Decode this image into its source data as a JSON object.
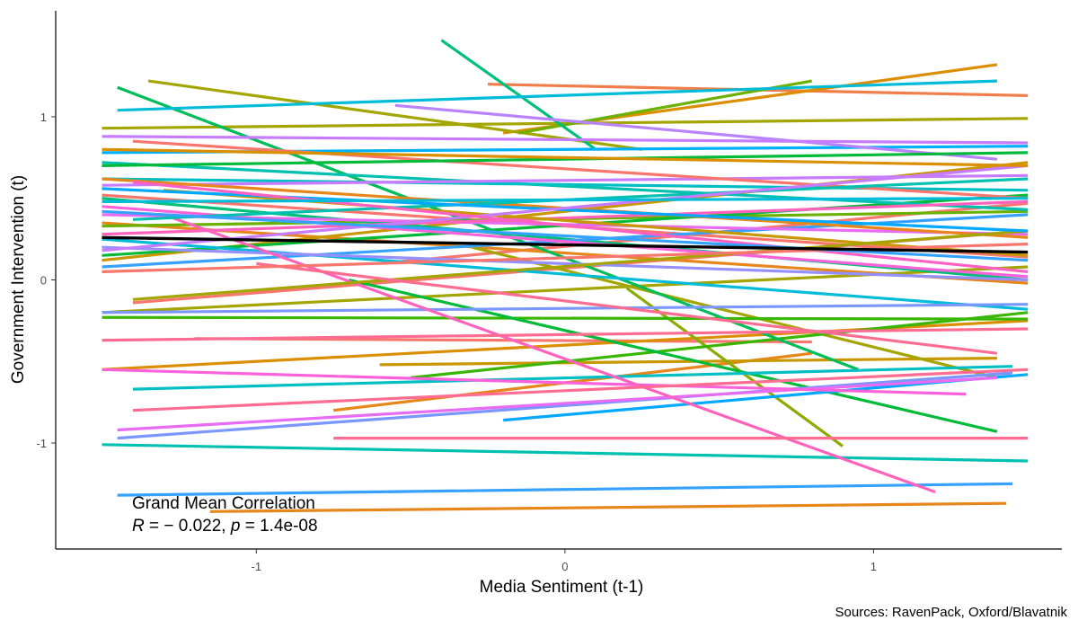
{
  "chart_data": {
    "type": "line",
    "title": "",
    "xlabel": "Media Sentiment (t-1)",
    "ylabel": "Government Intervention (t)",
    "xlim": [
      -1.65,
      1.61
    ],
    "ylim": [
      -1.65,
      1.65
    ],
    "x_ticks": [
      -1,
      0,
      1
    ],
    "x_tick_labels": [
      "-1",
      "0",
      "1"
    ],
    "y_ticks": [
      -1,
      0,
      1
    ],
    "y_tick_labels": [
      "-1",
      "0",
      "1"
    ],
    "grid": false,
    "legend": "none",
    "caption": "Sources: RavenPack, Oxford/Blavatnik",
    "annotation": {
      "line1": "Grand Mean Correlation",
      "r_label": "R",
      "r_value": " = − 0.022, ",
      "p_label": "p",
      "p_value": " = 1.4e-08"
    },
    "grand_mean": {
      "color": "#000000",
      "x": [
        -1.5,
        1.5
      ],
      "y": [
        0.26,
        0.17
      ]
    },
    "series": [
      {
        "color": "#F8766D",
        "x": [
          -1.5,
          1.5
        ],
        "y": [
          0.52,
          0.14
        ]
      },
      {
        "color": "#F8766D",
        "x": [
          -1.4,
          1.5
        ],
        "y": [
          -0.14,
          0.3
        ]
      },
      {
        "color": "#F8766D",
        "x": [
          -0.6,
          1.5
        ],
        "y": [
          0.1,
          0.47
        ]
      },
      {
        "color": "#F8766D",
        "x": [
          -1.2,
          0.8
        ],
        "y": [
          -0.36,
          -0.38
        ]
      },
      {
        "color": "#F07E4A",
        "x": [
          -0.25,
          1.5
        ],
        "y": [
          1.2,
          1.13
        ]
      },
      {
        "color": "#E7861B",
        "x": [
          -1.15,
          1.43
        ],
        "y": [
          -1.42,
          -1.37
        ]
      },
      {
        "color": "#E7861B",
        "x": [
          -0.75,
          0.8
        ],
        "y": [
          -0.8,
          -0.45
        ]
      },
      {
        "color": "#E7861B",
        "x": [
          -1.5,
          1.5
        ],
        "y": [
          0.35,
          -0.02
        ]
      },
      {
        "color": "#DB8E00",
        "x": [
          -0.2,
          1.4
        ],
        "y": [
          0.9,
          1.32
        ]
      },
      {
        "color": "#DB8E00",
        "x": [
          -1.5,
          1.5
        ],
        "y": [
          -0.55,
          -0.25
        ]
      },
      {
        "color": "#C99800",
        "x": [
          -1.5,
          1.5
        ],
        "y": [
          0.12,
          0.72
        ]
      },
      {
        "color": "#C99800",
        "x": [
          -0.6,
          1.4
        ],
        "y": [
          -0.52,
          -0.48
        ]
      },
      {
        "color": "#A3A500",
        "x": [
          -1.5,
          1.5
        ],
        "y": [
          0.93,
          0.99
        ]
      },
      {
        "color": "#A3A500",
        "x": [
          -1.35,
          0.25
        ],
        "y": [
          1.22,
          0.8
        ]
      },
      {
        "color": "#A3A500",
        "x": [
          -1.5,
          1.5
        ],
        "y": [
          -0.2,
          0.08
        ]
      },
      {
        "color": "#A3A500",
        "x": [
          -0.3,
          1.4
        ],
        "y": [
          0.2,
          -0.6
        ]
      },
      {
        "color": "#8BAB00",
        "x": [
          0.2,
          0.9
        ],
        "y": [
          -0.05,
          -1.02
        ]
      },
      {
        "color": "#6BB100",
        "x": [
          -1.5,
          1.5
        ],
        "y": [
          0.33,
          0.42
        ]
      },
      {
        "color": "#6BB100",
        "x": [
          -0.15,
          0.8
        ],
        "y": [
          0.9,
          1.22
        ]
      },
      {
        "color": "#39B600",
        "x": [
          -0.5,
          1.5
        ],
        "y": [
          -0.6,
          -0.2
        ]
      },
      {
        "color": "#39B600",
        "x": [
          -1.5,
          1.5
        ],
        "y": [
          -0.23,
          -0.24
        ]
      },
      {
        "color": "#00BA38",
        "x": [
          -0.7,
          1.4
        ],
        "y": [
          0.0,
          -0.93
        ]
      },
      {
        "color": "#00BA38",
        "x": [
          -1.5,
          1.5
        ],
        "y": [
          0.15,
          0.52
        ]
      },
      {
        "color": "#00BC59",
        "x": [
          -1.45,
          0.95
        ],
        "y": [
          1.18,
          -0.55
        ]
      },
      {
        "color": "#00BF76",
        "x": [
          -0.4,
          0.1
        ],
        "y": [
          1.47,
          0.8
        ]
      },
      {
        "color": "#00BF76",
        "x": [
          -1.5,
          1.5
        ],
        "y": [
          0.5,
          0.0
        ]
      },
      {
        "color": "#00C0AF",
        "x": [
          -1.5,
          1.5
        ],
        "y": [
          -1.01,
          -1.11
        ]
      },
      {
        "color": "#00C0AF",
        "x": [
          -1.5,
          1.5
        ],
        "y": [
          0.72,
          0.43
        ]
      },
      {
        "color": "#00BFC4",
        "x": [
          -1.4,
          1.45
        ],
        "y": [
          -0.67,
          -0.53
        ]
      },
      {
        "color": "#00BFC4",
        "x": [
          -1.5,
          1.5
        ],
        "y": [
          0.62,
          0.55
        ]
      },
      {
        "color": "#00BCD8",
        "x": [
          -1.45,
          1.4
        ],
        "y": [
          1.04,
          1.22
        ]
      },
      {
        "color": "#00BCD8",
        "x": [
          -1.5,
          1.5
        ],
        "y": [
          0.25,
          -0.18
        ]
      },
      {
        "color": "#00B0F6",
        "x": [
          -1.5,
          1.5
        ],
        "y": [
          0.78,
          0.82
        ]
      },
      {
        "color": "#00A9FF",
        "x": [
          -0.2,
          1.5
        ],
        "y": [
          -0.86,
          -0.58
        ]
      },
      {
        "color": "#35A2FF",
        "x": [
          -1.45,
          1.45
        ],
        "y": [
          -1.32,
          -1.25
        ]
      },
      {
        "color": "#35A2FF",
        "x": [
          -1.5,
          1.5
        ],
        "y": [
          0.08,
          0.4
        ]
      },
      {
        "color": "#7997FF",
        "x": [
          -1.45,
          1.45
        ],
        "y": [
          -0.97,
          -0.57
        ]
      },
      {
        "color": "#7997FF",
        "x": [
          -1.5,
          1.5
        ],
        "y": [
          -0.2,
          -0.15
        ]
      },
      {
        "color": "#9590FF",
        "x": [
          -1.5,
          1.5
        ],
        "y": [
          0.2,
          0.0
        ]
      },
      {
        "color": "#B983FF",
        "x": [
          -0.55,
          1.4
        ],
        "y": [
          1.07,
          0.74
        ]
      },
      {
        "color": "#C77CFF",
        "x": [
          -1.5,
          1.5
        ],
        "y": [
          0.88,
          0.84
        ]
      },
      {
        "color": "#C77CFF",
        "x": [
          -1.5,
          1.5
        ],
        "y": [
          0.58,
          0.64
        ]
      },
      {
        "color": "#E76BF3",
        "x": [
          -1.5,
          1.5
        ],
        "y": [
          0.4,
          0.28
        ]
      },
      {
        "color": "#E76BF3",
        "x": [
          -1.45,
          1.4
        ],
        "y": [
          -0.92,
          -0.6
        ]
      },
      {
        "color": "#FA62DB",
        "x": [
          -1.5,
          1.5
        ],
        "y": [
          0.45,
          0.02
        ]
      },
      {
        "color": "#FA62DB",
        "x": [
          -1.5,
          1.3
        ],
        "y": [
          -0.55,
          -0.7
        ]
      },
      {
        "color": "#FF62BC",
        "x": [
          -1.3,
          1.2
        ],
        "y": [
          0.4,
          -1.3
        ]
      },
      {
        "color": "#FF62BC",
        "x": [
          -1.5,
          1.5
        ],
        "y": [
          0.28,
          0.48
        ]
      },
      {
        "color": "#FF6C91",
        "x": [
          -1.4,
          1.5
        ],
        "y": [
          -0.8,
          -0.55
        ]
      },
      {
        "color": "#FF6C91",
        "x": [
          -0.75,
          1.5
        ],
        "y": [
          -0.97,
          -0.97
        ]
      },
      {
        "color": "#FF6C91",
        "x": [
          -1.5,
          1.5
        ],
        "y": [
          -0.37,
          -0.3
        ]
      },
      {
        "color": "#F8766D",
        "x": [
          -1.4,
          1.5
        ],
        "y": [
          0.85,
          0.5
        ]
      },
      {
        "color": "#E7861B",
        "x": [
          -1.5,
          1.5
        ],
        "y": [
          0.62,
          0.26
        ]
      },
      {
        "color": "#C99800",
        "x": [
          -1.3,
          1.5
        ],
        "y": [
          0.55,
          0.15
        ]
      },
      {
        "color": "#A3A500",
        "x": [
          -1.4,
          1.5
        ],
        "y": [
          -0.12,
          0.3
        ]
      },
      {
        "color": "#00BA38",
        "x": [
          -1.5,
          1.5
        ],
        "y": [
          0.7,
          0.78
        ]
      },
      {
        "color": "#00C0AF",
        "x": [
          -1.4,
          1.5
        ],
        "y": [
          0.37,
          0.62
        ]
      },
      {
        "color": "#00A9FF",
        "x": [
          -1.5,
          1.5
        ],
        "y": [
          0.56,
          0.3
        ]
      },
      {
        "color": "#C77CFF",
        "x": [
          -1.5,
          1.5
        ],
        "y": [
          0.18,
          0.7
        ]
      },
      {
        "color": "#FF61C3",
        "x": [
          -1.4,
          1.5
        ],
        "y": [
          0.6,
          0.05
        ]
      },
      {
        "color": "#FF6C91",
        "x": [
          -1.0,
          1.4
        ],
        "y": [
          0.1,
          -0.45
        ]
      },
      {
        "color": "#F8766D",
        "x": [
          -1.5,
          1.5
        ],
        "y": [
          0.05,
          0.22
        ]
      },
      {
        "color": "#00BCD8",
        "x": [
          -1.5,
          1.5
        ],
        "y": [
          0.48,
          0.5
        ]
      },
      {
        "color": "#DB8E00",
        "x": [
          -1.5,
          1.5
        ],
        "y": [
          0.8,
          0.7
        ]
      },
      {
        "color": "#35A2FF",
        "x": [
          -1.5,
          1.5
        ],
        "y": [
          0.42,
          0.12
        ]
      }
    ]
  }
}
